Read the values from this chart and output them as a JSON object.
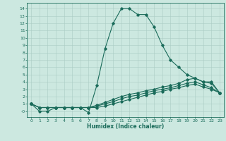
{
  "xlabel": "Humidex (Indice chaleur)",
  "bg_color": "#cce8e0",
  "line_color": "#1a6b5a",
  "grid_color": "#aaccC4",
  "xlim": [
    -0.5,
    23.5
  ],
  "ylim": [
    -0.8,
    14.8
  ],
  "xticks": [
    0,
    1,
    2,
    3,
    4,
    5,
    6,
    7,
    8,
    9,
    10,
    11,
    12,
    13,
    14,
    15,
    16,
    17,
    18,
    19,
    20,
    21,
    22,
    23
  ],
  "yticks": [
    0,
    1,
    2,
    3,
    4,
    5,
    6,
    7,
    8,
    9,
    10,
    11,
    12,
    13,
    14
  ],
  "ytick_labels": [
    "-0",
    "1",
    "2",
    "3",
    "4",
    "5",
    "6",
    "7",
    "8",
    "9",
    "10",
    "11",
    "12",
    "13",
    "14"
  ],
  "line1_x": [
    0,
    1,
    2,
    3,
    4,
    5,
    6,
    7,
    8,
    9,
    10,
    11,
    12,
    13,
    14,
    15,
    16,
    17,
    18,
    19,
    20,
    21,
    22,
    23
  ],
  "line1_y": [
    1.0,
    0.0,
    0.0,
    0.5,
    0.5,
    0.5,
    0.5,
    -0.2,
    3.5,
    8.5,
    12.0,
    14.0,
    14.0,
    13.2,
    13.2,
    11.5,
    9.0,
    7.0,
    6.0,
    5.0,
    4.5,
    4.0,
    4.0,
    2.5
  ],
  "line2_x": [
    0,
    1,
    2,
    3,
    4,
    5,
    6,
    7,
    8,
    9,
    10,
    11,
    12,
    13,
    14,
    15,
    16,
    17,
    18,
    19,
    20,
    21,
    22,
    23
  ],
  "line2_y": [
    1.0,
    0.5,
    0.5,
    0.5,
    0.5,
    0.5,
    0.5,
    0.5,
    0.8,
    1.2,
    1.6,
    2.0,
    2.3,
    2.5,
    2.8,
    3.0,
    3.3,
    3.5,
    3.8,
    4.3,
    4.5,
    4.0,
    3.8,
    2.5
  ],
  "line3_x": [
    0,
    1,
    2,
    3,
    4,
    5,
    6,
    7,
    8,
    9,
    10,
    11,
    12,
    13,
    14,
    15,
    16,
    17,
    18,
    19,
    20,
    21,
    22,
    23
  ],
  "line3_y": [
    1.0,
    0.5,
    0.5,
    0.5,
    0.5,
    0.5,
    0.5,
    0.5,
    0.7,
    1.0,
    1.3,
    1.7,
    2.0,
    2.2,
    2.5,
    2.8,
    3.0,
    3.2,
    3.5,
    3.8,
    4.0,
    3.6,
    3.2,
    2.5
  ],
  "line4_x": [
    0,
    1,
    2,
    3,
    4,
    5,
    6,
    7,
    8,
    9,
    10,
    11,
    12,
    13,
    14,
    15,
    16,
    17,
    18,
    19,
    20,
    21,
    22,
    23
  ],
  "line4_y": [
    1.0,
    0.5,
    0.5,
    0.5,
    0.5,
    0.5,
    0.5,
    0.5,
    0.5,
    0.7,
    1.0,
    1.3,
    1.6,
    1.9,
    2.2,
    2.5,
    2.7,
    3.0,
    3.2,
    3.5,
    3.7,
    3.3,
    3.0,
    2.5
  ]
}
